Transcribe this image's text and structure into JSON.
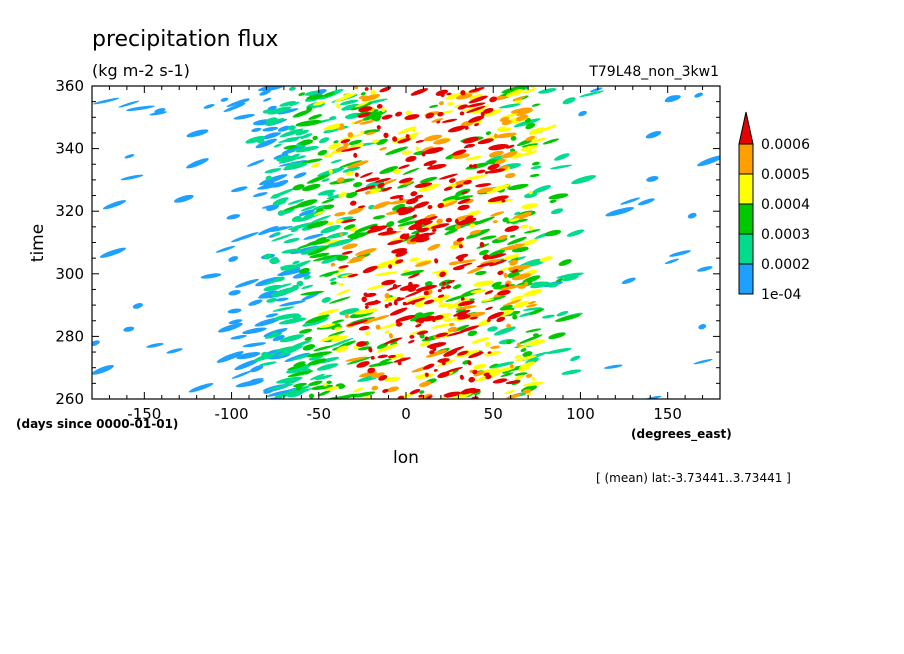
{
  "chart_data": {
    "type": "heatmap",
    "title": "precipitation flux",
    "units": "(kg m-2 s-1)",
    "run_label": "T79L48_non_3kw1",
    "xlabel": "lon",
    "x_units": "(degrees_east)",
    "ylabel": "time",
    "y_units": "(days since 0000-01-01)",
    "subset_note": "[ (mean) lat:-3.73441..3.73441 ]",
    "xlim": [
      -180,
      180
    ],
    "ylim": [
      260,
      360
    ],
    "x_ticks": [
      -150,
      -100,
      -50,
      0,
      50,
      100,
      150
    ],
    "x_tick_labels": [
      "-150",
      "-100",
      "-50",
      "0",
      "50",
      "100",
      "150"
    ],
    "y_ticks": [
      260,
      280,
      300,
      320,
      340,
      360
    ],
    "y_tick_labels": [
      "260",
      "280",
      "300",
      "320",
      "340",
      "360"
    ],
    "colorbar": {
      "levels": [
        0.0001,
        0.0002,
        0.0003,
        0.0004,
        0.0005,
        0.0006
      ],
      "labels": [
        "1e-04",
        "0.0002",
        "0.0003",
        "0.0004",
        "0.0005",
        "0.0006"
      ],
      "colors": [
        "#1ea0ff",
        "#00dc8c",
        "#00c800",
        "#ffff00",
        "#ffa000",
        "#e60000"
      ],
      "extend": "max"
    },
    "field_summary": "Intermittent eastward-propagating precipitation streaks concentrated between about -100 and 80 degrees east, strongest near 0 to 50 degrees east; sparse weak precipitation west of -100 and east of 100."
  }
}
